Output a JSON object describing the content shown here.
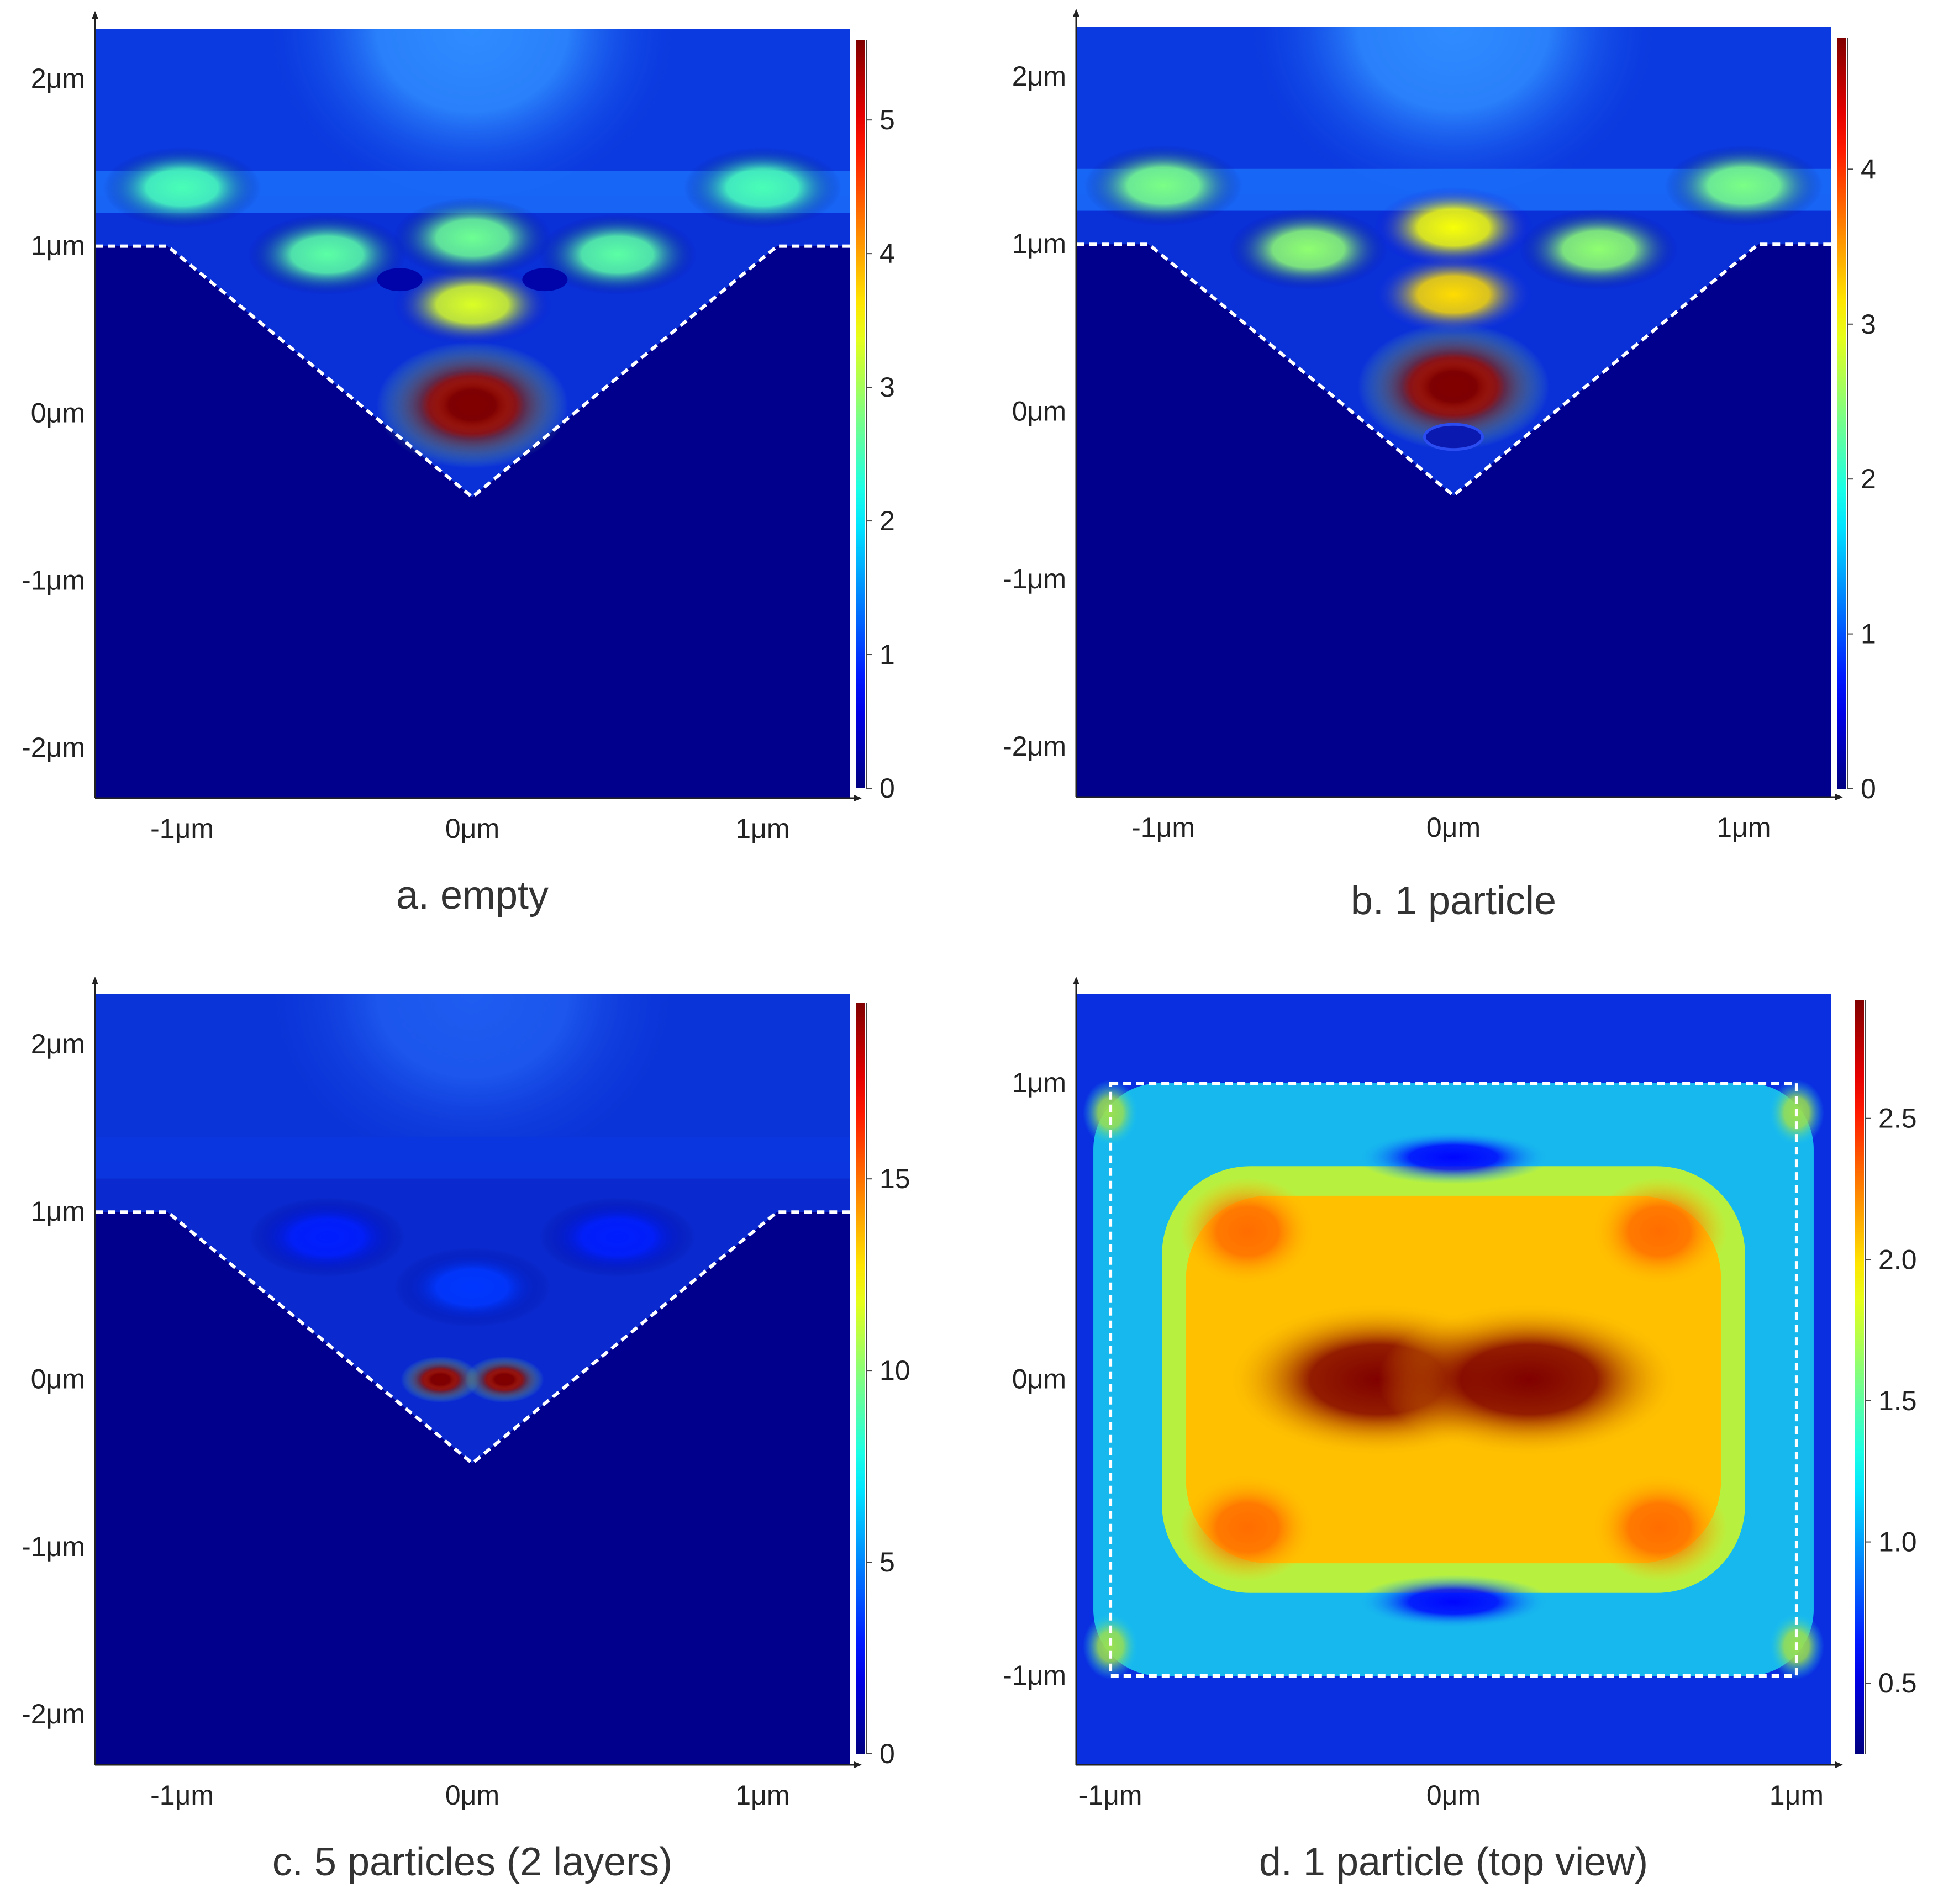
{
  "figure": {
    "panels": [
      {
        "caption": "a. empty",
        "view": "cross-section",
        "x_ticks": [
          "-1μm",
          "0μm",
          "1μm"
        ],
        "y_ticks": [
          "2μm",
          "1μm",
          "0μm",
          "-1μm",
          "-2μm"
        ],
        "colorbar_ticks": [
          "0",
          "1",
          "2",
          "3",
          "4",
          "5"
        ],
        "colorbar_range": [
          0,
          5.6
        ],
        "outline": "v-groove",
        "colors": {
          "top_layer": "#0b3ae0",
          "substrate": "#00008c",
          "dashed_outline": "#ffffff"
        }
      },
      {
        "caption": "b. 1 particle",
        "view": "cross-section",
        "x_ticks": [
          "-1μm",
          "0μm",
          "1μm"
        ],
        "y_ticks": [
          "2μm",
          "1μm",
          "0μm",
          "-1μm",
          "-2μm"
        ],
        "colorbar_ticks": [
          "0",
          "1",
          "2",
          "3",
          "4"
        ],
        "colorbar_range": [
          0,
          4.85
        ],
        "outline": "v-groove",
        "colors": {
          "top_layer": "#0b3ae0",
          "substrate": "#00008c",
          "dashed_outline": "#ffffff"
        }
      },
      {
        "caption": "c. 5 particles (2 layers)",
        "view": "cross-section",
        "x_ticks": [
          "-1μm",
          "0μm",
          "1μm"
        ],
        "y_ticks": [
          "2μm",
          "1μm",
          "0μm",
          "-1μm",
          "-2μm"
        ],
        "colorbar_ticks": [
          "0",
          "5",
          "10",
          "15"
        ],
        "colorbar_range": [
          0,
          19.6
        ],
        "outline": "v-groove",
        "colors": {
          "top_layer": "#0b34d8",
          "substrate": "#00008c",
          "dashed_outline": "#ffffff"
        }
      },
      {
        "caption": "d. 1 particle (top view)",
        "view": "top",
        "x_ticks": [
          "-1μm",
          "0μm",
          "1μm"
        ],
        "y_ticks": [
          "1μm",
          "0μm",
          "-1μm"
        ],
        "colorbar_ticks": [
          "0.5",
          "1.0",
          "1.5",
          "2.0",
          "2.5"
        ],
        "colorbar_range": [
          0.25,
          2.92
        ],
        "outline": "square",
        "colors": {
          "background": "#0a2fe0",
          "dashed_outline": "#ffffff"
        }
      }
    ]
  },
  "chart_data": [
    {
      "type": "heatmap",
      "title": "a. empty",
      "x_tick_labels": [
        "-1μm",
        "0μm",
        "1μm"
      ],
      "x_tick_values": [
        -1,
        0,
        1
      ],
      "y_tick_labels": [
        "2μm",
        "1μm",
        "0μm",
        "-1μm",
        "-2μm"
      ],
      "y_tick_values": [
        2,
        1,
        0,
        -1,
        -2
      ],
      "xlim": [
        -1.3,
        1.3
      ],
      "ylim": [
        -2.3,
        2.3
      ],
      "colorscale": "jet",
      "color_range": [
        0,
        5.6
      ],
      "colorbar_ticks": [
        0,
        1,
        2,
        3,
        4,
        5
      ],
      "field_maxima": [
        {
          "x": 0,
          "y": 0.05,
          "value": 5.6
        },
        {
          "x": 0,
          "y": 0.65,
          "value": 3.3
        },
        {
          "x": 0,
          "y": 1.05,
          "value": 2.7
        },
        {
          "x": -0.5,
          "y": 0.95,
          "value": 2.6
        },
        {
          "x": 0.5,
          "y": 0.95,
          "value": 2.6
        },
        {
          "x": -1.0,
          "y": 1.35,
          "value": 2.5
        },
        {
          "x": 1.0,
          "y": 1.35,
          "value": 2.5
        }
      ],
      "field_minima": [
        {
          "x": -0.25,
          "y": 0.8,
          "value": 0.2
        },
        {
          "x": 0.25,
          "y": 0.8,
          "value": 0.2
        }
      ],
      "groove_outline": {
        "x": [
          -1.3,
          -1.05,
          0,
          1.05,
          1.3
        ],
        "y": [
          1.0,
          1.0,
          -0.5,
          1.0,
          1.0
        ]
      }
    },
    {
      "type": "heatmap",
      "title": "b. 1 particle",
      "x_tick_labels": [
        "-1μm",
        "0μm",
        "1μm"
      ],
      "x_tick_values": [
        -1,
        0,
        1
      ],
      "y_tick_labels": [
        "2μm",
        "1μm",
        "0μm",
        "-1μm",
        "-2μm"
      ],
      "y_tick_values": [
        2,
        1,
        0,
        -1,
        -2
      ],
      "xlim": [
        -1.3,
        1.3
      ],
      "ylim": [
        -2.3,
        2.3
      ],
      "colorscale": "jet",
      "color_range": [
        0,
        4.85
      ],
      "colorbar_ticks": [
        0,
        1,
        2,
        3,
        4
      ],
      "field_maxima": [
        {
          "x": 0,
          "y": 0.15,
          "value": 4.85
        },
        {
          "x": 0,
          "y": 0.7,
          "value": 3.2
        },
        {
          "x": 0,
          "y": 1.1,
          "value": 3.0
        },
        {
          "x": -0.5,
          "y": 0.97,
          "value": 2.5
        },
        {
          "x": 0.5,
          "y": 0.97,
          "value": 2.5
        },
        {
          "x": -1.0,
          "y": 1.35,
          "value": 2.4
        },
        {
          "x": 1.0,
          "y": 1.35,
          "value": 2.4
        }
      ],
      "particles": [
        {
          "x": 0,
          "y": -0.15,
          "r": 0.1
        }
      ],
      "groove_outline": {
        "x": [
          -1.3,
          -1.05,
          0,
          1.05,
          1.3
        ],
        "y": [
          1.0,
          1.0,
          -0.5,
          1.0,
          1.0
        ]
      }
    },
    {
      "type": "heatmap",
      "title": "c. 5 particles (2 layers)",
      "x_tick_labels": [
        "-1μm",
        "0μm",
        "1μm"
      ],
      "x_tick_values": [
        -1,
        0,
        1
      ],
      "y_tick_labels": [
        "2μm",
        "1μm",
        "0μm",
        "-1μm",
        "-2μm"
      ],
      "y_tick_values": [
        2,
        1,
        0,
        -1,
        -2
      ],
      "xlim": [
        -1.3,
        1.3
      ],
      "ylim": [
        -2.3,
        2.3
      ],
      "colorscale": "jet",
      "color_range": [
        0,
        19.6
      ],
      "colorbar_ticks": [
        0,
        5,
        10,
        15
      ],
      "field_maxima": [
        {
          "x": -0.11,
          "y": 0.0,
          "value": 19.6
        },
        {
          "x": 0.11,
          "y": 0.0,
          "value": 19.6
        },
        {
          "x": 0,
          "y": 0.55,
          "value": 3.5
        },
        {
          "x": -0.5,
          "y": 0.85,
          "value": 3.0
        },
        {
          "x": 0.5,
          "y": 0.85,
          "value": 3.0
        }
      ],
      "groove_outline": {
        "x": [
          -1.3,
          -1.05,
          0,
          1.05,
          1.3
        ],
        "y": [
          1.0,
          1.0,
          -0.5,
          1.0,
          1.0
        ]
      }
    },
    {
      "type": "heatmap",
      "title": "d. 1 particle (top view)",
      "x_tick_labels": [
        "-1μm",
        "0μm",
        "1μm"
      ],
      "x_tick_values": [
        -1,
        0,
        1
      ],
      "y_tick_labels": [
        "1μm",
        "0μm",
        "-1μm"
      ],
      "y_tick_values": [
        1,
        0,
        -1
      ],
      "xlim": [
        -1.1,
        1.1
      ],
      "ylim": [
        -1.3,
        1.3
      ],
      "colorscale": "jet",
      "color_range": [
        0.25,
        2.92
      ],
      "colorbar_ticks": [
        0.5,
        1.0,
        1.5,
        2.0,
        2.5
      ],
      "field_maxima": [
        {
          "x": -0.22,
          "y": 0.0,
          "value": 2.92
        },
        {
          "x": 0.22,
          "y": 0.0,
          "value": 2.92
        },
        {
          "x": -0.6,
          "y": 0.5,
          "value": 2.3
        },
        {
          "x": 0.6,
          "y": 0.5,
          "value": 2.3
        },
        {
          "x": -0.6,
          "y": -0.5,
          "value": 2.3
        },
        {
          "x": 0.6,
          "y": -0.5,
          "value": 2.3
        }
      ],
      "field_minima": [
        {
          "x": 0,
          "y": 0.75,
          "value": 0.6
        },
        {
          "x": 0,
          "y": -0.75,
          "value": 0.6
        }
      ],
      "square_outline": {
        "x": [
          -1.0,
          1.0
        ],
        "y": [
          -1.0,
          1.0
        ]
      }
    }
  ]
}
